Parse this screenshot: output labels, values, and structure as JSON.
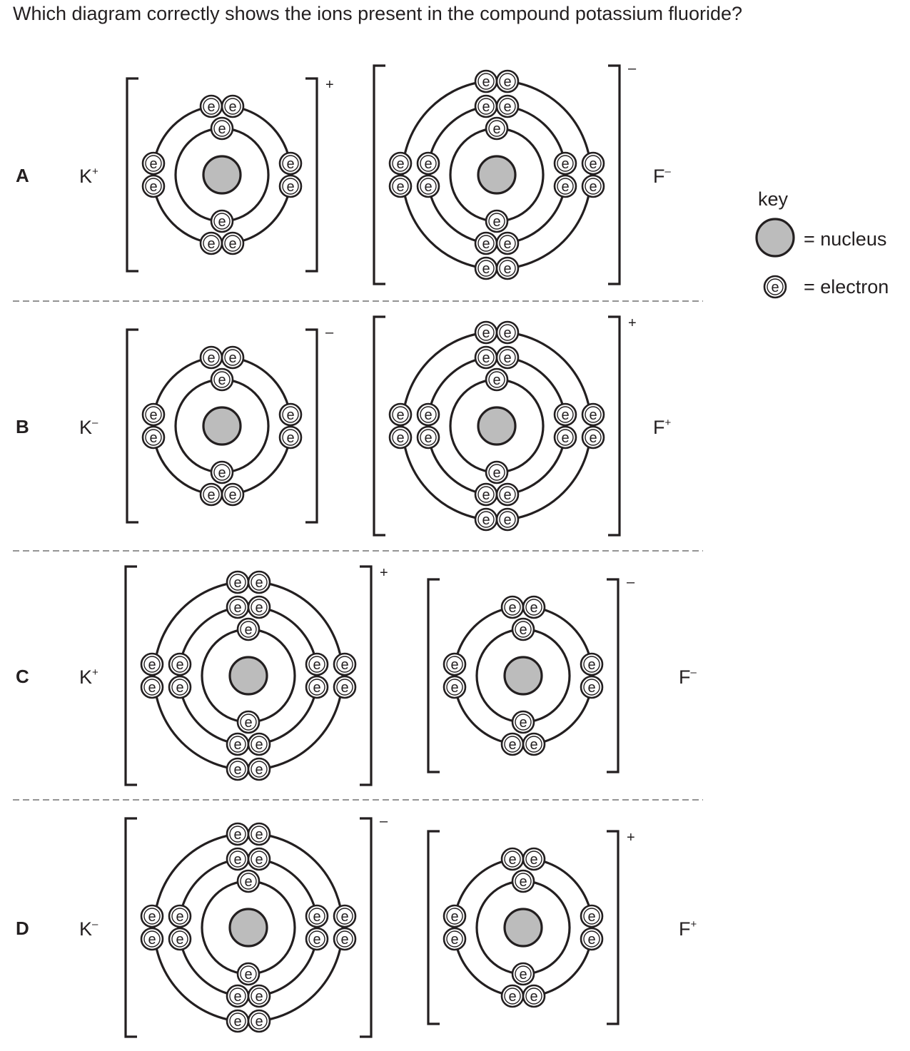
{
  "question": "Which diagram correctly shows the ions present in the compound potassium fluoride?",
  "electron_symbol": "e",
  "options": [
    {
      "letter": "A",
      "left_label": {
        "element": "K",
        "charge": "+"
      },
      "right_label": {
        "element": "F",
        "charge": "–"
      },
      "left_ion": {
        "shells": [
          2,
          8
        ],
        "bracket_charge": "+"
      },
      "right_ion": {
        "shells": [
          2,
          8,
          8
        ],
        "bracket_charge": "–"
      }
    },
    {
      "letter": "B",
      "left_label": {
        "element": "K",
        "charge": "–"
      },
      "right_label": {
        "element": "F",
        "charge": "+"
      },
      "left_ion": {
        "shells": [
          2,
          8
        ],
        "bracket_charge": "–"
      },
      "right_ion": {
        "shells": [
          2,
          8,
          8
        ],
        "bracket_charge": "+"
      }
    },
    {
      "letter": "C",
      "left_label": {
        "element": "K",
        "charge": "+"
      },
      "right_label": {
        "element": "F",
        "charge": "–"
      },
      "left_ion": {
        "shells": [
          2,
          8,
          8
        ],
        "bracket_charge": "+"
      },
      "right_ion": {
        "shells": [
          2,
          8
        ],
        "bracket_charge": "–"
      }
    },
    {
      "letter": "D",
      "left_label": {
        "element": "K",
        "charge": "–"
      },
      "right_label": {
        "element": "F",
        "charge": "+"
      },
      "left_ion": {
        "shells": [
          2,
          8,
          8
        ],
        "bracket_charge": "–"
      },
      "right_ion": {
        "shells": [
          2,
          8
        ],
        "bracket_charge": "+"
      }
    }
  ],
  "key": {
    "title": "key",
    "nucleus_label": "= nucleus",
    "electron_label": "= electron"
  },
  "colors": {
    "nucleus_fill": "#bcbcbc",
    "line": "#231f20"
  }
}
